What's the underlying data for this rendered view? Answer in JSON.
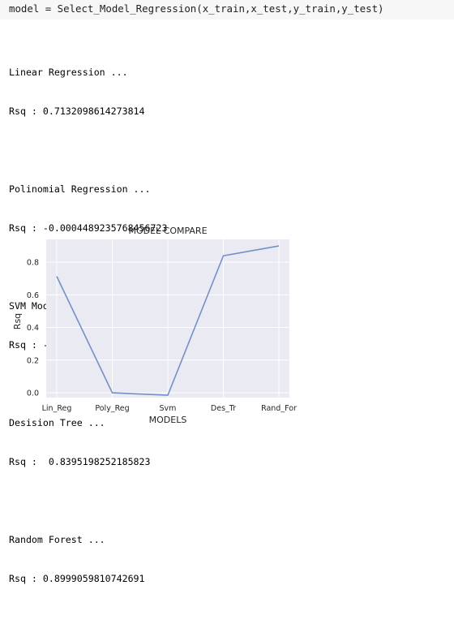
{
  "input": {
    "code": "model = Select_Model_Regression(x_train,x_test,y_train,y_test)"
  },
  "output": {
    "blocks": [
      {
        "title": "Linear Regression ...",
        "result": "Rsq : 0.7132098614273814"
      },
      {
        "title": "Polinomial Regression ...",
        "result": "Rsq : -0.0004489235768456723"
      },
      {
        "title": "SVM Model ...",
        "result": "Rsq : -0.01530434874423836"
      },
      {
        "title": "Desision Tree ...",
        "result": "Rsq :  0.8395198252185823"
      },
      {
        "title": "Random Forest ...",
        "result": "Rsq : 0.8999059810742691"
      }
    ]
  },
  "chart_data": {
    "type": "line",
    "title": "MODEL COMPARE",
    "xlabel": "MODELS",
    "ylabel": "Rsq",
    "categories": [
      "Lin_Reg",
      "Poly_Reg",
      "Svm",
      "Des_Tr",
      "Rand_For"
    ],
    "values": [
      0.7132098614273814,
      -0.0004489235768456723,
      -0.01530434874423836,
      0.8395198252185823,
      0.8999059810742691
    ],
    "yticks": [
      "0.0",
      "0.2",
      "0.4",
      "0.6",
      "0.8"
    ],
    "ylim": [
      -0.03,
      0.94
    ],
    "grid": true,
    "line_color": "#7590c6",
    "background_color": "#eaeaf2"
  }
}
